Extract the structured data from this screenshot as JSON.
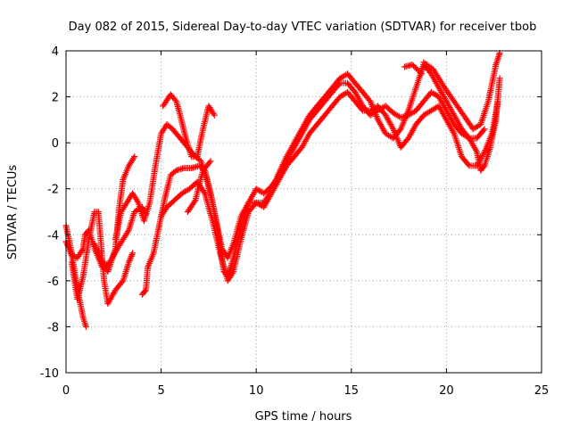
{
  "chart_data": {
    "type": "scatter",
    "title": "Day 082 of 2015, Sidereal Day-to-day VTEC variation (SDTVAR) for receiver tbob",
    "xlabel": "GPS time / hours",
    "ylabel": "SDTVAR / TECUs",
    "xlim": [
      0,
      25
    ],
    "ylim": [
      -10,
      4
    ],
    "xticks": [
      0,
      5,
      10,
      15,
      20,
      25
    ],
    "yticks": [
      -10,
      -8,
      -6,
      -4,
      -2,
      0,
      2,
      4
    ],
    "grid": true,
    "marker": "plus",
    "color": "#ff0000",
    "series": [
      {
        "points": [
          [
            0.0,
            -3.6
          ],
          [
            0.3,
            -4.8
          ],
          [
            0.6,
            -6.4
          ],
          [
            0.9,
            -7.6
          ],
          [
            1.05,
            -8.0
          ]
        ]
      },
      {
        "points": [
          [
            0.0,
            -4.3
          ],
          [
            0.3,
            -4.9
          ],
          [
            0.6,
            -5.0
          ],
          [
            0.9,
            -4.6
          ],
          [
            1.0,
            -4.0
          ],
          [
            1.2,
            -3.8
          ],
          [
            1.5,
            -4.6
          ],
          [
            1.9,
            -5.4
          ],
          [
            2.3,
            -5.2
          ],
          [
            2.7,
            -4.6
          ],
          [
            3.0,
            -4.2
          ],
          [
            3.3,
            -3.8
          ],
          [
            3.6,
            -3.0
          ],
          [
            4.0,
            -2.8
          ],
          [
            4.2,
            -3.1
          ]
        ]
      },
      {
        "points": [
          [
            0.3,
            -5.2
          ],
          [
            0.6,
            -6.8
          ],
          [
            0.9,
            -5.8
          ],
          [
            1.2,
            -4.2
          ],
          [
            1.5,
            -3.0
          ],
          [
            1.7,
            -3.0
          ],
          [
            1.8,
            -4.0
          ],
          [
            2.0,
            -6.0
          ],
          [
            2.2,
            -7.0
          ],
          [
            2.6,
            -6.4
          ],
          [
            3.0,
            -6.0
          ],
          [
            3.3,
            -5.2
          ],
          [
            3.5,
            -4.8
          ]
        ]
      },
      {
        "points": [
          [
            1.5,
            -4.4
          ],
          [
            1.8,
            -5.0
          ],
          [
            2.2,
            -5.6
          ],
          [
            2.6,
            -4.6
          ],
          [
            2.8,
            -2.8
          ],
          [
            3.0,
            -1.6
          ],
          [
            3.3,
            -1.0
          ],
          [
            3.6,
            -0.6
          ]
        ]
      },
      {
        "points": [
          [
            2.6,
            -4.2
          ],
          [
            2.9,
            -3.0
          ],
          [
            3.2,
            -2.6
          ],
          [
            3.5,
            -2.2
          ],
          [
            3.8,
            -2.6
          ],
          [
            4.1,
            -3.4
          ],
          [
            4.4,
            -2.6
          ],
          [
            4.7,
            -1.0
          ],
          [
            5.0,
            0.4
          ],
          [
            5.3,
            0.8
          ],
          [
            5.6,
            0.6
          ],
          [
            6.0,
            0.2
          ],
          [
            6.4,
            -0.2
          ],
          [
            6.8,
            -0.6
          ],
          [
            7.1,
            -0.8
          ],
          [
            7.4,
            -1.6
          ],
          [
            7.7,
            -2.6
          ],
          [
            8.0,
            -4.0
          ],
          [
            8.3,
            -5.6
          ],
          [
            8.5,
            -5.8
          ],
          [
            8.8,
            -5.0
          ],
          [
            9.2,
            -3.8
          ],
          [
            9.6,
            -2.6
          ],
          [
            10.0,
            -2.0
          ],
          [
            10.4,
            -2.2
          ],
          [
            10.8,
            -1.9
          ],
          [
            11.2,
            -1.4
          ],
          [
            11.6,
            -0.8
          ],
          [
            12.0,
            -0.2
          ],
          [
            12.4,
            0.4
          ],
          [
            12.8,
            1.0
          ],
          [
            13.2,
            1.4
          ],
          [
            13.6,
            1.8
          ],
          [
            14.0,
            2.2
          ],
          [
            14.4,
            2.6
          ],
          [
            14.8,
            2.6
          ],
          [
            15.2,
            2.2
          ],
          [
            15.6,
            1.6
          ],
          [
            16.0,
            1.2
          ],
          [
            16.4,
            1.4
          ],
          [
            16.8,
            1.6
          ],
          [
            17.2,
            1.3
          ],
          [
            17.6,
            1.1
          ],
          [
            18.0,
            1.2
          ],
          [
            18.4,
            1.4
          ],
          [
            18.8,
            1.8
          ],
          [
            19.2,
            2.2
          ],
          [
            19.6,
            2.0
          ],
          [
            20.0,
            1.4
          ],
          [
            20.4,
            0.8
          ],
          [
            20.8,
            0.4
          ],
          [
            21.2,
            0.2
          ],
          [
            21.6,
            0.2
          ],
          [
            22.0,
            0.6
          ]
        ]
      },
      {
        "points": [
          [
            4.0,
            -6.6
          ],
          [
            4.2,
            -6.4
          ],
          [
            4.3,
            -5.4
          ],
          [
            4.6,
            -4.8
          ],
          [
            4.9,
            -3.6
          ],
          [
            5.2,
            -2.4
          ],
          [
            5.5,
            -1.4
          ],
          [
            5.8,
            -1.2
          ],
          [
            6.2,
            -1.1
          ],
          [
            6.6,
            -1.1
          ],
          [
            7.0,
            -1.0
          ],
          [
            7.3,
            -1.2
          ],
          [
            7.6,
            -2.2
          ],
          [
            7.9,
            -3.4
          ],
          [
            8.2,
            -4.6
          ],
          [
            8.5,
            -5.0
          ],
          [
            8.8,
            -4.4
          ],
          [
            9.2,
            -3.2
          ],
          [
            9.6,
            -2.6
          ],
          [
            10.0,
            -2.6
          ],
          [
            10.4,
            -2.8
          ],
          [
            10.8,
            -2.2
          ],
          [
            11.2,
            -1.6
          ],
          [
            11.6,
            -1.0
          ],
          [
            12.0,
            -0.6
          ],
          [
            12.4,
            -0.2
          ],
          [
            12.8,
            0.4
          ],
          [
            13.2,
            0.8
          ],
          [
            13.6,
            1.2
          ],
          [
            14.0,
            1.6
          ],
          [
            14.4,
            2.0
          ],
          [
            14.8,
            2.2
          ],
          [
            15.2,
            1.8
          ],
          [
            15.6,
            1.4
          ],
          [
            16.0,
            1.4
          ],
          [
            16.4,
            1.6
          ],
          [
            16.8,
            1.2
          ],
          [
            17.2,
            0.6
          ],
          [
            17.6,
            -0.2
          ],
          [
            18.0,
            0.2
          ],
          [
            18.4,
            0.8
          ],
          [
            18.8,
            1.2
          ],
          [
            19.2,
            1.4
          ],
          [
            19.6,
            1.6
          ],
          [
            20.0,
            1.0
          ],
          [
            20.4,
            0.4
          ],
          [
            20.8,
            -0.6
          ],
          [
            21.2,
            -1.0
          ],
          [
            21.6,
            -1.0
          ],
          [
            22.0,
            -0.4
          ],
          [
            22.4,
            0.4
          ],
          [
            22.7,
            1.8
          ]
        ]
      },
      {
        "points": [
          [
            5.0,
            -3.2
          ],
          [
            5.3,
            -2.8
          ],
          [
            5.7,
            -2.5
          ],
          [
            6.1,
            -2.2
          ],
          [
            6.5,
            -2.0
          ],
          [
            6.9,
            -1.7
          ],
          [
            7.3,
            -2.2
          ],
          [
            7.7,
            -3.4
          ],
          [
            8.1,
            -4.8
          ],
          [
            8.5,
            -6.0
          ],
          [
            8.8,
            -5.6
          ],
          [
            9.2,
            -4.2
          ],
          [
            9.6,
            -3.0
          ],
          [
            10.0,
            -2.6
          ],
          [
            10.4,
            -2.6
          ],
          [
            10.8,
            -2.1
          ],
          [
            11.2,
            -1.3
          ],
          [
            11.6,
            -0.6
          ],
          [
            12.0,
            0.0
          ],
          [
            12.4,
            0.6
          ],
          [
            12.8,
            1.2
          ],
          [
            13.2,
            1.6
          ],
          [
            13.6,
            2.0
          ],
          [
            14.0,
            2.4
          ],
          [
            14.4,
            2.8
          ],
          [
            14.8,
            3.0
          ],
          [
            15.2,
            2.6
          ],
          [
            15.6,
            2.2
          ],
          [
            16.0,
            1.8
          ],
          [
            16.4,
            1.0
          ],
          [
            16.8,
            0.4
          ],
          [
            17.2,
            0.2
          ],
          [
            17.6,
            0.6
          ],
          [
            18.0,
            1.4
          ],
          [
            18.4,
            2.4
          ],
          [
            18.8,
            3.4
          ],
          [
            19.2,
            3.0
          ],
          [
            19.6,
            2.4
          ],
          [
            20.0,
            1.8
          ],
          [
            20.4,
            1.2
          ],
          [
            20.8,
            0.6
          ],
          [
            21.2,
            0.2
          ],
          [
            21.6,
            -0.4
          ],
          [
            21.8,
            -1.2
          ],
          [
            22.0,
            -1.0
          ],
          [
            22.3,
            -0.2
          ],
          [
            22.6,
            1.0
          ],
          [
            22.8,
            2.8
          ]
        ]
      },
      {
        "points": [
          [
            5.1,
            1.6
          ],
          [
            5.5,
            2.1
          ],
          [
            5.8,
            1.8
          ],
          [
            6.0,
            1.2
          ],
          [
            6.3,
            0.2
          ],
          [
            6.6,
            -0.6
          ],
          [
            6.9,
            -0.6
          ],
          [
            7.2,
            0.6
          ],
          [
            7.5,
            1.6
          ],
          [
            7.8,
            1.2
          ]
        ]
      },
      {
        "points": [
          [
            6.4,
            -3.0
          ],
          [
            6.8,
            -2.5
          ],
          [
            7.2,
            -1.2
          ],
          [
            7.6,
            -0.8
          ]
        ]
      },
      {
        "points": [
          [
            18.8,
            3.5
          ],
          [
            19.3,
            3.2
          ],
          [
            19.9,
            2.4
          ],
          [
            20.4,
            1.8
          ],
          [
            20.9,
            1.2
          ],
          [
            21.4,
            0.6
          ],
          [
            21.8,
            0.8
          ],
          [
            22.2,
            1.8
          ],
          [
            22.6,
            3.4
          ],
          [
            22.8,
            3.9
          ]
        ]
      },
      {
        "points": [
          [
            17.8,
            3.3
          ],
          [
            18.2,
            3.4
          ],
          [
            18.7,
            3.0
          ]
        ]
      }
    ]
  }
}
